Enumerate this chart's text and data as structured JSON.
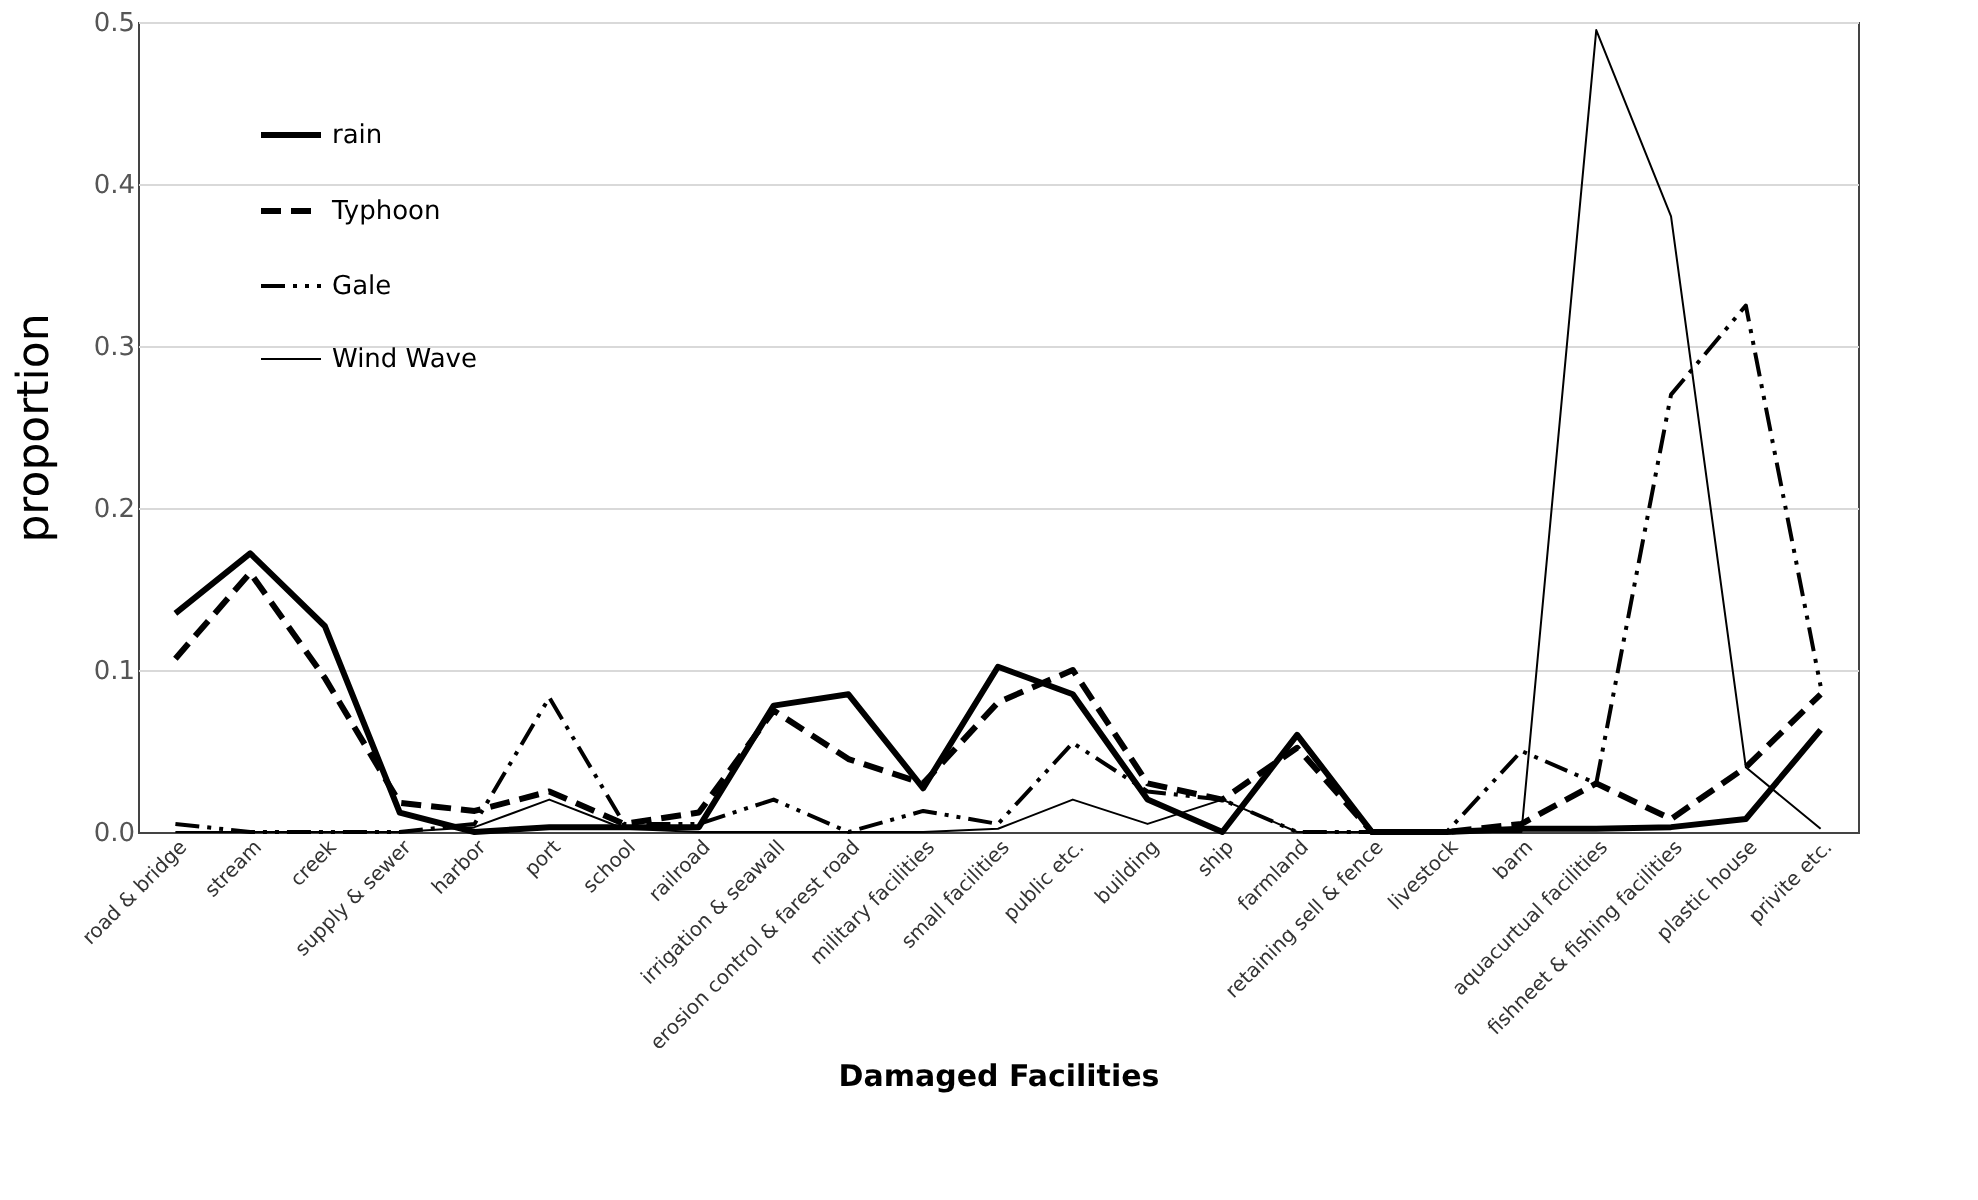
{
  "chart_data": {
    "type": "line",
    "xlabel": "Damaged Facilities",
    "ylabel": "proportion",
    "categories": [
      "road & bridge",
      "stream",
      "creek",
      "supply & sewer",
      "harbor",
      "port",
      "school",
      "railroad",
      "irrigation & seawall",
      "erosion control & farest road",
      "military facilities",
      "small facilities",
      "public etc.",
      "building",
      "ship",
      "farmland",
      "retaining sell & fence",
      "livestock",
      "barn",
      "aquacurtual facilities",
      "fishneet & fishing facilities",
      "plastic house",
      "privite etc."
    ],
    "series": [
      {
        "name": "rain",
        "color": "#000000",
        "line_style": "solid",
        "values": [
          0.135,
          0.172,
          0.127,
          0.012,
          0.0,
          0.003,
          0.003,
          0.003,
          0.078,
          0.085,
          0.027,
          0.102,
          0.085,
          0.02,
          0.0,
          0.06,
          0.0,
          0.0,
          0.002,
          0.002,
          0.003,
          0.008,
          0.063
        ]
      },
      {
        "name": "Typhoon",
        "color": "#000000",
        "line_style": "dashed",
        "values": [
          0.107,
          0.16,
          0.095,
          0.018,
          0.013,
          0.025,
          0.005,
          0.012,
          0.075,
          0.045,
          0.03,
          0.08,
          0.1,
          0.03,
          0.02,
          0.052,
          0.0,
          0.0,
          0.005,
          0.03,
          0.008,
          0.04,
          0.085
        ]
      },
      {
        "name": "Gale",
        "color": "#000000",
        "line_style": "dotted",
        "values": [
          0.005,
          0.0,
          0.0,
          0.0,
          0.005,
          0.083,
          0.005,
          0.005,
          0.02,
          0.0,
          0.013,
          0.005,
          0.055,
          0.025,
          0.02,
          0.0,
          0.0,
          0.0,
          0.05,
          0.03,
          0.27,
          0.325,
          0.09
        ]
      },
      {
        "name": "Wind Wave",
        "color": "#000000",
        "line_style": "solid",
        "values": [
          0.0,
          0.0,
          0.0,
          0.0,
          0.003,
          0.02,
          0.002,
          0.0,
          0.0,
          0.0,
          0.0,
          0.002,
          0.02,
          0.005,
          0.02,
          0.0,
          0.0,
          0.0,
          0.0,
          0.495,
          0.38,
          0.04,
          0.002
        ]
      }
    ],
    "ylim": [
      0,
      0.5
    ],
    "yticks": [
      {
        "value": 0,
        "label": "0.0"
      },
      {
        "value": 0.1,
        "label": "0.1"
      },
      {
        "value": 0.2,
        "label": "0.2"
      },
      {
        "value": 0.3,
        "label": "0.3"
      },
      {
        "value": 0.4,
        "label": "0.4"
      },
      {
        "value": 0.5,
        "label": "0.5"
      }
    ],
    "grid": "y",
    "legend": "top left",
    "marker": "none"
  }
}
